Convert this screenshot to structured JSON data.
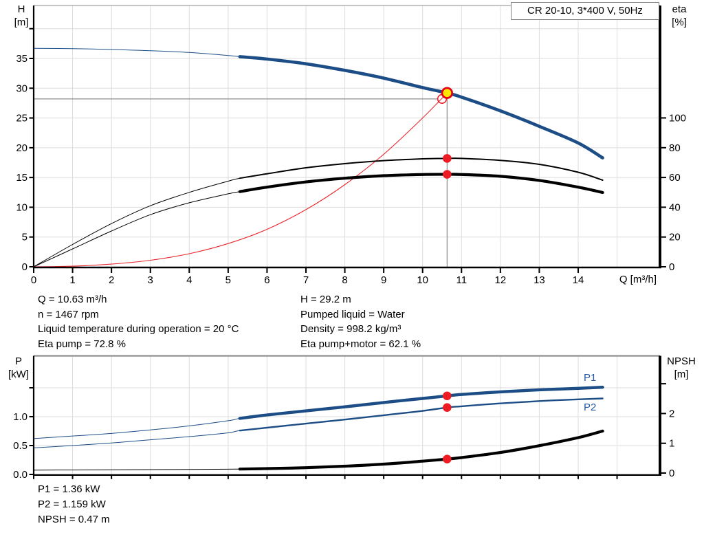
{
  "window_title": "CR 20-10, 3*400 V, 50Hz",
  "colors": {
    "curve_blue": "#1d4d86",
    "label_blue": "#2457a4",
    "curve_red": "#e8262c",
    "dot_red": "#ed1c24",
    "duty_yellow": "#ffe600",
    "duty_ring_red": "#e30016",
    "black": "#000000",
    "grid": "#dcdcdc",
    "crosshair": "#8c8c8c",
    "border_gray": "#b0b0b0",
    "panel_border_gray": "#9a9a9a"
  },
  "info": {
    "top_left": [
      "Q = 10.63 m³/h",
      "n = 1467 rpm",
      "Liquid temperature during operation = 20 °C",
      "Eta pump = 72.8 %"
    ],
    "top_right": [
      "H = 29.2 m",
      "Pumped liquid = Water",
      "Density = 998.2 kg/m³",
      "Eta pump+motor = 62.1 %"
    ],
    "bottom": [
      "P1 = 1.36 kW",
      "P2 = 1.159 kW",
      "NPSH = 0.47 m"
    ]
  },
  "chart_data": [
    {
      "type": "line",
      "title": "CR 20-10, 3*400 V, 50Hz",
      "grid": true,
      "x": {
        "label": "Q [m³/h]",
        "ticks": [
          0,
          1,
          2,
          3,
          4,
          5,
          6,
          7,
          8,
          9,
          10,
          11,
          12,
          13,
          14
        ],
        "range": [
          0,
          16.1
        ]
      },
      "y_left": {
        "label": "H",
        "unit": "[m]",
        "ticks": [
          0,
          5,
          10,
          15,
          20,
          25,
          30,
          35
        ],
        "extra_ticks": [
          40
        ],
        "range": [
          0,
          44
        ]
      },
      "y_right": {
        "label": "eta",
        "unit": "[%]",
        "ticks": [
          0,
          20,
          40,
          60,
          80,
          100
        ],
        "range": [
          0,
          100
        ]
      },
      "series": [
        {
          "name": "system-curve",
          "axis": "H",
          "color_key": "curve_red",
          "points": [
            [
              0,
              0
            ],
            [
              1,
              0.1
            ],
            [
              2,
              0.45
            ],
            [
              3,
              1.1
            ],
            [
              4,
              2.2
            ],
            [
              5,
              3.9
            ],
            [
              6,
              6.3
            ],
            [
              7,
              9.6
            ],
            [
              8,
              13.8
            ],
            [
              9,
              18.9
            ],
            [
              10,
              25.0
            ],
            [
              10.63,
              29.2
            ]
          ]
        },
        {
          "name": "eta-pump-curve",
          "axis": "eta",
          "color_key": "black",
          "thick_from": 5.3,
          "points": [
            [
              0,
              0
            ],
            [
              1,
              15
            ],
            [
              2,
              29
            ],
            [
              3,
              41
            ],
            [
              4,
              50
            ],
            [
              5,
              57.5
            ],
            [
              5.3,
              59.5
            ],
            [
              6,
              62.5
            ],
            [
              7,
              66.5
            ],
            [
              8,
              69.3
            ],
            [
              9,
              71.3
            ],
            [
              10,
              72.5
            ],
            [
              10.63,
              72.8
            ],
            [
              11,
              72.8
            ],
            [
              12,
              71.5
            ],
            [
              13,
              68.8
            ],
            [
              14,
              63.5
            ],
            [
              14.63,
              58.2
            ]
          ]
        },
        {
          "name": "eta-pump-motor-curve",
          "axis": "eta",
          "color_key": "black",
          "thick_from": 5.3,
          "points": [
            [
              0,
              0
            ],
            [
              1,
              12
            ],
            [
              2,
              24
            ],
            [
              3,
              35
            ],
            [
              4,
              43
            ],
            [
              5,
              49
            ],
            [
              5.3,
              50.5
            ],
            [
              6,
              53.5
            ],
            [
              7,
              57
            ],
            [
              8,
              59.5
            ],
            [
              9,
              61.2
            ],
            [
              10,
              62
            ],
            [
              10.63,
              62.1
            ],
            [
              11,
              62
            ],
            [
              12,
              60.8
            ],
            [
              13,
              58
            ],
            [
              14,
              53.5
            ],
            [
              14.63,
              49.9
            ]
          ]
        },
        {
          "name": "head-curve",
          "axis": "H",
          "color_key": "curve_blue",
          "thick_from": 5.3,
          "points": [
            [
              0,
              36.7
            ],
            [
              1,
              36.65
            ],
            [
              2,
              36.5
            ],
            [
              3,
              36.3
            ],
            [
              4,
              36.0
            ],
            [
              5,
              35.5
            ],
            [
              5.3,
              35.3
            ],
            [
              6,
              34.9
            ],
            [
              7,
              34.1
            ],
            [
              8,
              33.0
            ],
            [
              9,
              31.7
            ],
            [
              10,
              30.1
            ],
            [
              10.63,
              29.2
            ],
            [
              11,
              28.5
            ],
            [
              12,
              26.2
            ],
            [
              13,
              23.6
            ],
            [
              14,
              20.8
            ],
            [
              14.63,
              18.3
            ]
          ]
        }
      ],
      "markers": [
        {
          "type": "open",
          "q": 10.5,
          "v": 28.2,
          "axis": "H"
        },
        {
          "type": "duty",
          "q": 10.63,
          "v": 29.2,
          "axis": "H"
        },
        {
          "type": "dot",
          "q": 10.63,
          "v": 72.8,
          "axis": "eta"
        },
        {
          "type": "dot",
          "q": 10.63,
          "v": 62.1,
          "axis": "eta"
        }
      ],
      "crosshair": {
        "h_value": 28.2,
        "h_axis": "H",
        "h_to_q": 10.5,
        "v_q": 10.63,
        "v_from": 29.2
      }
    },
    {
      "type": "line",
      "title": "",
      "grid": true,
      "x": {
        "label": "",
        "ticks": [],
        "range": [
          0,
          16.1
        ]
      },
      "y_left": {
        "label": "P",
        "unit": "[kW]",
        "ticks": [
          0.0,
          0.5,
          1.0
        ],
        "tick_labels": [
          "0.0",
          "0.5",
          "1.0"
        ],
        "extra_ticks": [
          1.5
        ],
        "range": [
          0,
          2.05
        ]
      },
      "y_right": {
        "label": "NPSH",
        "unit": "[m]",
        "ticks": [
          0,
          1,
          2
        ],
        "extra_ticks": [
          3
        ],
        "range": [
          0,
          3.9
        ]
      },
      "series": [
        {
          "name": "npsh-curve",
          "axis": "NPSH",
          "color_key": "black",
          "thick_from": 5.3,
          "points": [
            [
              0,
              0.1
            ],
            [
              1,
              0.105
            ],
            [
              2,
              0.11
            ],
            [
              3,
              0.115
            ],
            [
              4,
              0.12
            ],
            [
              5,
              0.13
            ],
            [
              5.3,
              0.135
            ],
            [
              6,
              0.15
            ],
            [
              7,
              0.18
            ],
            [
              8,
              0.23
            ],
            [
              9,
              0.3
            ],
            [
              10,
              0.4
            ],
            [
              10.63,
              0.47
            ],
            [
              11,
              0.52
            ],
            [
              12,
              0.69
            ],
            [
              13,
              0.92
            ],
            [
              14,
              1.19
            ],
            [
              14.63,
              1.41
            ]
          ]
        },
        {
          "name": "p2-curve",
          "axis": "P",
          "color_key": "curve_blue",
          "thick_from": 5.3,
          "points": [
            [
              0,
              0.46
            ],
            [
              1,
              0.5
            ],
            [
              2,
              0.545
            ],
            [
              3,
              0.6
            ],
            [
              4,
              0.655
            ],
            [
              5,
              0.72
            ],
            [
              5.3,
              0.76
            ],
            [
              6,
              0.81
            ],
            [
              7,
              0.88
            ],
            [
              8,
              0.95
            ],
            [
              9,
              1.025
            ],
            [
              10,
              1.1
            ],
            [
              10.63,
              1.159
            ],
            [
              11,
              1.18
            ],
            [
              12,
              1.23
            ],
            [
              13,
              1.27
            ],
            [
              14,
              1.3
            ],
            [
              14.63,
              1.315
            ]
          ]
        },
        {
          "name": "p1-curve",
          "axis": "P",
          "color_key": "curve_blue",
          "thick_from": 5.3,
          "points": [
            [
              0,
              0.62
            ],
            [
              1,
              0.665
            ],
            [
              2,
              0.71
            ],
            [
              3,
              0.77
            ],
            [
              4,
              0.84
            ],
            [
              5,
              0.93
            ],
            [
              5.3,
              0.97
            ],
            [
              6,
              1.03
            ],
            [
              7,
              1.1
            ],
            [
              8,
              1.17
            ],
            [
              9,
              1.245
            ],
            [
              10,
              1.315
            ],
            [
              10.63,
              1.36
            ],
            [
              11,
              1.385
            ],
            [
              12,
              1.43
            ],
            [
              13,
              1.465
            ],
            [
              14,
              1.49
            ],
            [
              14.63,
              1.51
            ]
          ]
        }
      ],
      "markers": [
        {
          "type": "dot",
          "q": 10.63,
          "v": 1.36,
          "axis": "P"
        },
        {
          "type": "dot",
          "q": 10.63,
          "v": 1.159,
          "axis": "P"
        },
        {
          "type": "dot",
          "q": 10.63,
          "v": 0.47,
          "axis": "NPSH"
        }
      ],
      "curve_labels": [
        {
          "text": "P1"
        },
        {
          "text": "P2"
        }
      ]
    }
  ],
  "labels": {
    "p1": "P1",
    "p2": "P2",
    "q_axis": "Q [m³/h]",
    "h_axis": "H",
    "h_unit": "[m]",
    "eta_axis": "eta",
    "eta_unit": "[%]",
    "p_axis": "P",
    "p_unit": "[kW]",
    "npsh_axis": "NPSH",
    "npsh_unit": "[m]"
  }
}
